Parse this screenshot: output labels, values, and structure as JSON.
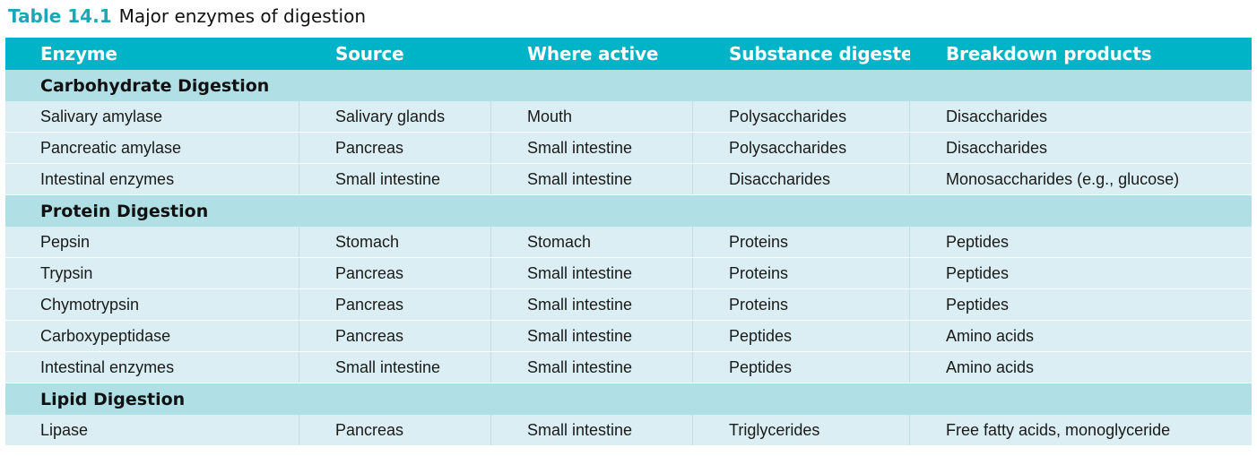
{
  "caption": {
    "number": "Table 14.1",
    "title": "Major enzymes of digestion"
  },
  "columns": [
    "Enzyme",
    "Source",
    "Where active",
    "Substance digested",
    "Breakdown products"
  ],
  "sections": [
    {
      "name": "Carbohydrate Digestion",
      "rows": [
        [
          "Salivary amylase",
          "Salivary glands",
          "Mouth",
          "Polysaccharides",
          "Disaccharides"
        ],
        [
          "Pancreatic amylase",
          "Pancreas",
          "Small intestine",
          "Polysaccharides",
          "Disaccharides"
        ],
        [
          "Intestinal enzymes",
          "Small intestine",
          "Small intestine",
          "Disaccharides",
          "Monosaccharides (e.g., glucose)"
        ]
      ]
    },
    {
      "name": "Protein Digestion",
      "rows": [
        [
          "Pepsin",
          "Stomach",
          "Stomach",
          "Proteins",
          "Peptides"
        ],
        [
          "Trypsin",
          "Pancreas",
          "Small intestine",
          "Proteins",
          "Peptides"
        ],
        [
          "Chymotrypsin",
          "Pancreas",
          "Small intestine",
          "Proteins",
          "Peptides"
        ],
        [
          "Carboxypeptidase",
          "Pancreas",
          "Small intestine",
          "Peptides",
          "Amino acids"
        ],
        [
          "Intestinal enzymes",
          "Small intestine",
          "Small intestine",
          "Peptides",
          "Amino acids"
        ]
      ]
    },
    {
      "name": "Lipid Digestion",
      "rows": [
        [
          "Lipase",
          "Pancreas",
          "Small intestine",
          "Triglycerides",
          "Free fatty acids, monoglyceride"
        ]
      ]
    }
  ],
  "colors": {
    "header_bg": "#00b4c8",
    "section_bg": "#b0e0e6",
    "row_bg": "#daeef3",
    "caption_number": "#1ba7b6"
  }
}
